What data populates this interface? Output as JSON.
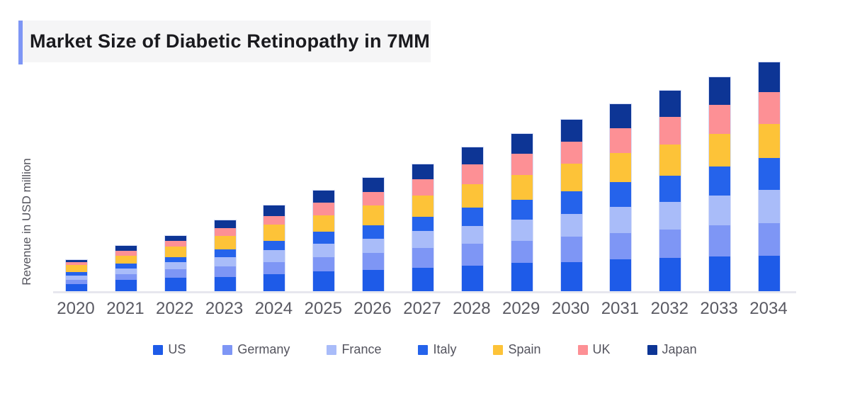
{
  "header": {
    "title": "Market Size of Diabetic Retinopathy in 7MM",
    "accent_color": "#7e96f5",
    "band_color": "#f5f5f6"
  },
  "axes": {
    "ylabel": "Revenue in USD million",
    "axis_line_color": "#e7e7ee",
    "tick_text_color": "#5a5a63"
  },
  "chart_data": {
    "type": "bar",
    "stacked": true,
    "title": "Market Size of Diabetic Retinopathy in 7MM",
    "xlabel": "",
    "ylabel": "Revenue in USD million",
    "categories": [
      "2020",
      "2021",
      "2022",
      "2023",
      "2024",
      "2025",
      "2026",
      "2027",
      "2028",
      "2029",
      "2030",
      "2031",
      "2032",
      "2033",
      "2034"
    ],
    "series": [
      {
        "name": "US",
        "color": "#1e5be8",
        "values": [
          11,
          17,
          20,
          21,
          25,
          29,
          31,
          34,
          37,
          41,
          42,
          46,
          48,
          50,
          51
        ]
      },
      {
        "name": "Germany",
        "color": "#7e96f5",
        "values": [
          6,
          8,
          12,
          15,
          17,
          20,
          24,
          28,
          31,
          31,
          36,
          37,
          40,
          44,
          46
        ]
      },
      {
        "name": "France",
        "color": "#a9bcf9",
        "values": [
          6,
          8,
          10,
          13,
          17,
          19,
          20,
          24,
          25,
          30,
          32,
          37,
          39,
          42,
          47
        ]
      },
      {
        "name": "Italy",
        "color": "#2563eb",
        "values": [
          5,
          7,
          7,
          11,
          13,
          17,
          19,
          20,
          26,
          28,
          32,
          35,
          37,
          41,
          45
        ]
      },
      {
        "name": "Spain",
        "color": "#fdc338",
        "values": [
          10,
          11,
          15,
          19,
          23,
          23,
          28,
          30,
          33,
          35,
          39,
          41,
          44,
          46,
          48
        ]
      },
      {
        "name": "UK",
        "color": "#fd9095",
        "values": [
          4,
          7,
          8,
          11,
          12,
          18,
          19,
          23,
          28,
          30,
          31,
          35,
          39,
          41,
          45
        ]
      },
      {
        "name": "Japan",
        "color": "#0d3595",
        "values": [
          3,
          7,
          7,
          11,
          15,
          17,
          20,
          21,
          24,
          28,
          31,
          34,
          37,
          39,
          42
        ]
      }
    ],
    "totals": [
      45,
      65,
      79,
      101,
      122,
      143,
      161,
      180,
      204,
      223,
      243,
      265,
      284,
      303,
      324
    ],
    "units": "USD million (relative estimate; y-axis shows no tick values)",
    "ylim": [
      0,
      340
    ],
    "grid": false,
    "legend_position": "bottom",
    "stack_order_bottom_to_top": [
      "US",
      "Germany",
      "France",
      "Italy",
      "Spain",
      "UK",
      "Japan"
    ]
  },
  "legend": {
    "labels": [
      "US",
      "Germany",
      "France",
      "Italy",
      "Spain",
      "UK",
      "Japan"
    ]
  }
}
